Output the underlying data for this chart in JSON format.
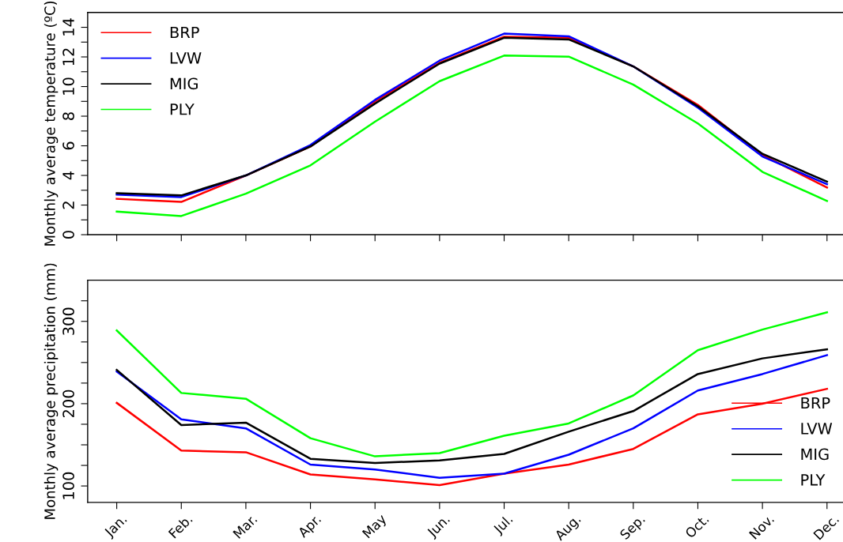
{
  "chart_data": [
    {
      "type": "line",
      "ylabel": "Monthly average temperature (ºC)",
      "categories": [
        null,
        null,
        null,
        null,
        null,
        null,
        null,
        null,
        null,
        null,
        null,
        null
      ],
      "ylim": [
        0,
        15
      ],
      "yticks": [
        0,
        {
          "value": 1,
          "label": null
        },
        2,
        {
          "value": 3,
          "label": null
        },
        4,
        {
          "value": 5,
          "label": null
        },
        6,
        {
          "value": 7,
          "label": null
        },
        8,
        {
          "value": 9,
          "label": null
        },
        10,
        {
          "value": 11,
          "label": null
        },
        12,
        {
          "value": 13,
          "label": null
        },
        14
      ],
      "tick_labels": "y",
      "legend": "top left",
      "grid": false,
      "series": [
        {
          "name": "BRP",
          "color": "#ff0000",
          "values": [
            2.42,
            2.21,
            4.0,
            5.95,
            9.0,
            11.6,
            13.36,
            13.29,
            11.36,
            8.76,
            5.37,
            3.19
          ]
        },
        {
          "name": "LVW",
          "color": "#0000ff",
          "values": [
            2.7,
            2.54,
            4.0,
            6.05,
            9.1,
            11.75,
            13.57,
            13.39,
            11.36,
            8.58,
            5.28,
            3.41
          ]
        },
        {
          "name": "MIG",
          "color": "#000000",
          "values": [
            2.8,
            2.65,
            4.0,
            5.95,
            8.85,
            11.55,
            13.29,
            13.18,
            11.36,
            8.67,
            5.46,
            3.58
          ]
        },
        {
          "name": "PLY",
          "color": "#00ff00",
          "values": [
            1.56,
            1.26,
            2.77,
            4.68,
            7.63,
            10.36,
            12.09,
            12.02,
            10.13,
            7.51,
            4.24,
            2.28
          ]
        }
      ]
    },
    {
      "type": "line",
      "ylabel": "Monthly average precipitation (mm)",
      "categories": [
        "Jan.",
        "Feb.",
        "Mar.",
        "Apr.",
        "May",
        "Jun.",
        "Jul.",
        "Aug.",
        "Sep.",
        "Oct.",
        "Nov.",
        "Dec."
      ],
      "ylim": [
        80,
        350
      ],
      "yticks": [
        100,
        {
          "value": 125,
          "label": null
        },
        {
          "value": 150,
          "label": null
        },
        {
          "value": 175,
          "label": null
        },
        200,
        {
          "value": 225,
          "label": null
        },
        {
          "value": 250,
          "label": null
        },
        {
          "value": 275,
          "label": null
        },
        300,
        {
          "value": 325,
          "label": null
        }
      ],
      "legend": "bottom right",
      "grid": false,
      "series": [
        {
          "name": "BRP",
          "color": "#ff0000",
          "values": [
            201,
            143,
            141,
            114,
            108,
            101,
            115,
            126,
            145,
            187,
            200,
            218
          ]
        },
        {
          "name": "LVW",
          "color": "#0000ff",
          "values": [
            239,
            181,
            170,
            126,
            120,
            110,
            115,
            138,
            170,
            216,
            236,
            259
          ]
        },
        {
          "name": "MIG",
          "color": "#000000",
          "values": [
            241,
            174,
            177,
            133,
            128,
            131,
            139,
            166,
            191,
            236,
            255,
            266
          ]
        },
        {
          "name": "PLY",
          "color": "#00ff00",
          "values": [
            289,
            213,
            206,
            158,
            136,
            140,
            161,
            176,
            210,
            265,
            290,
            311
          ]
        }
      ]
    }
  ]
}
